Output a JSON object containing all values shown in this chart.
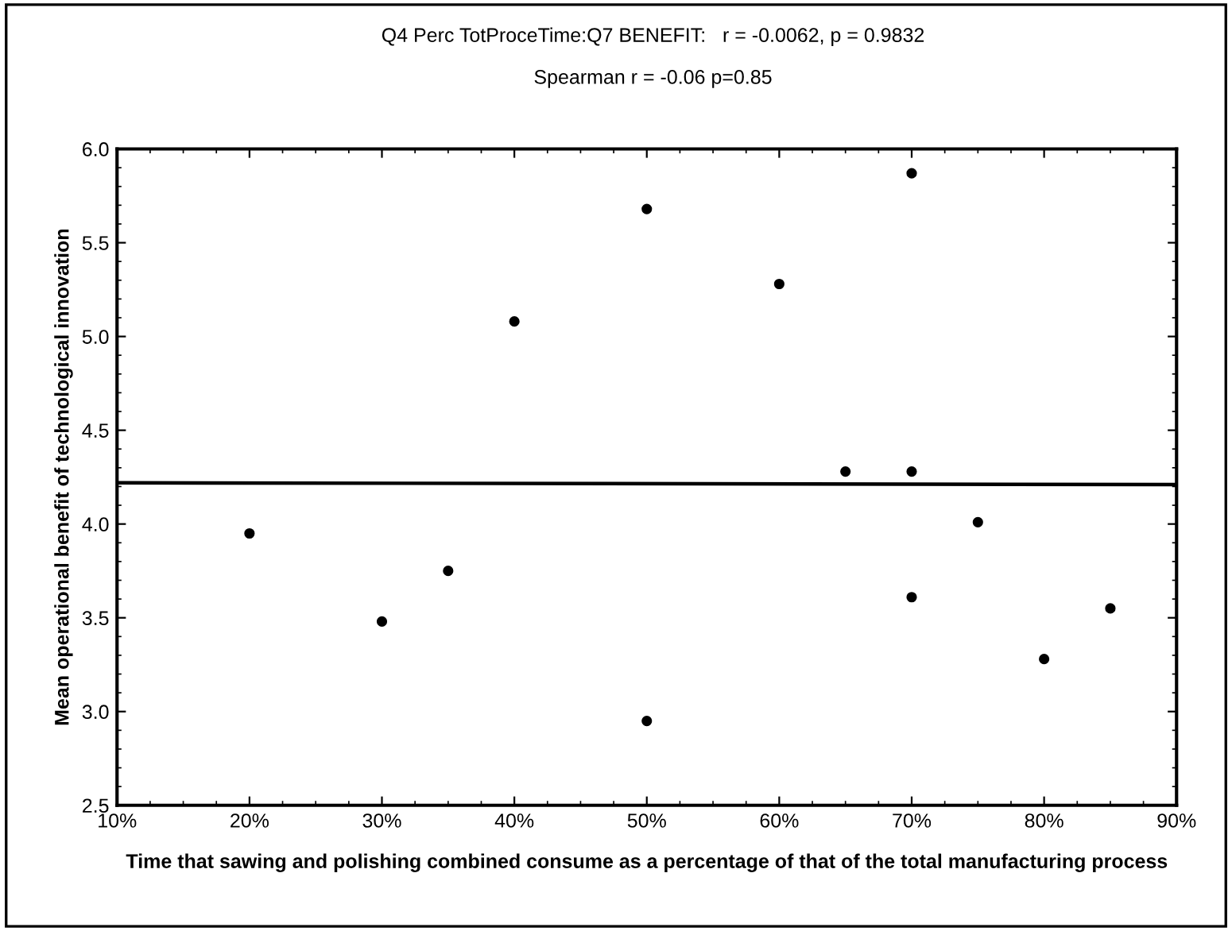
{
  "chart_data": {
    "type": "scatter",
    "title": "Q4 Perc TotProceTime:Q7 BENEFIT:   r = -0.0062, p = 0.9832",
    "subtitle": "Spearman r = -0.06 p=0.85",
    "xlabel": "Time that sawing and polishing combined consume as a percentage of that of the total manufacturing process",
    "ylabel": "Mean operational benefit of technological innovation",
    "series": [
      {
        "color": "#000000",
        "marker": "circle",
        "x": [
          20,
          30,
          35,
          40,
          50,
          50,
          60,
          65,
          70,
          70,
          70,
          75,
          80,
          85
        ],
        "values": [
          3.95,
          3.48,
          3.75,
          5.08,
          5.68,
          2.95,
          5.28,
          4.28,
          5.87,
          4.28,
          3.61,
          4.01,
          3.28,
          3.55
        ]
      },
      {
        "type": "line",
        "color": "#000000",
        "line_style": "solid",
        "x": [
          10,
          90
        ],
        "values": [
          4.22,
          4.21
        ]
      }
    ],
    "xlim": [
      10,
      90
    ],
    "xticks": [
      {
        "value": 10,
        "label": "10%"
      },
      {
        "value": 20,
        "label": "20%"
      },
      {
        "value": 30,
        "label": "30%"
      },
      {
        "value": 40,
        "label": "40%"
      },
      {
        "value": 50,
        "label": "50%"
      },
      {
        "value": 60,
        "label": "60%"
      },
      {
        "value": 70,
        "label": "70%"
      },
      {
        "value": 80,
        "label": "80%"
      },
      {
        "value": 90,
        "label": "90%"
      }
    ],
    "ylim": [
      2.5,
      6.0
    ],
    "yticks": [
      {
        "value": 2.5,
        "label": "2.5"
      },
      {
        "value": 3.0,
        "label": "3.0"
      },
      {
        "value": 3.5,
        "label": "3.5"
      },
      {
        "value": 4.0,
        "label": "4.0"
      },
      {
        "value": 4.5,
        "label": "4.5"
      },
      {
        "value": 5.0,
        "label": "5.0"
      },
      {
        "value": 5.5,
        "label": "5.5"
      },
      {
        "value": 6.0,
        "label": "6.0"
      }
    ],
    "grid": false,
    "legend": false
  }
}
